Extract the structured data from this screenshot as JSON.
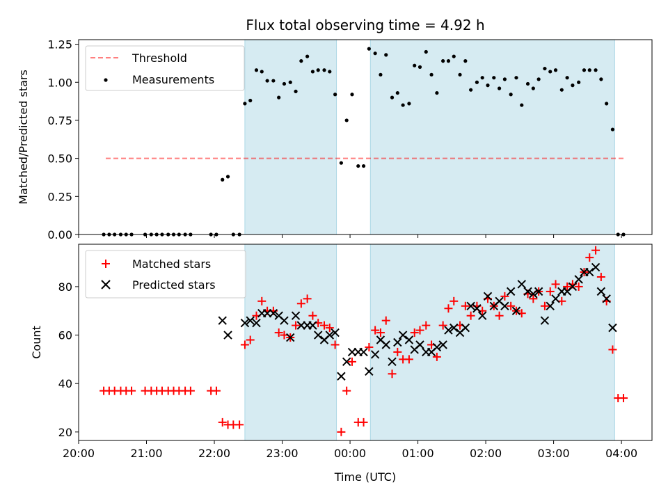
{
  "chart_data": {
    "type": "scatter",
    "title": "Flux total observing time = 4.92 h",
    "xlabel": "Time (UTC)",
    "x_ticks": [
      "20:00",
      "21:00",
      "22:00",
      "23:00",
      "00:00",
      "01:00",
      "02:00",
      "03:00",
      "04:00"
    ],
    "x_range_hours": [
      20.0,
      28.45
    ],
    "shaded_intervals_hours": [
      [
        22.45,
        23.8
      ],
      [
        24.3,
        27.9
      ]
    ],
    "shade_color": "#add8e6",
    "panels": [
      {
        "ylabel": "Matched/Predicted stars",
        "ylim": [
          0,
          1.28
        ],
        "y_ticks": [
          0.0,
          0.25,
          0.5,
          0.75,
          1.0,
          1.25
        ],
        "y_tick_labels": [
          "0.00",
          "0.25",
          "0.50",
          "0.75",
          "1.00",
          "1.25"
        ],
        "legend": [
          "Threshold",
          "Measurements"
        ],
        "legend_placement": "top-left",
        "threshold": {
          "name": "Threshold",
          "y": 0.5,
          "x_range_hours": [
            20.4,
            28.05
          ],
          "color": "#ff0000",
          "style": "dashed"
        },
        "measurements": {
          "name": "Measurements",
          "color": "#000000",
          "x": [
            20.37,
            20.45,
            20.53,
            20.62,
            20.7,
            20.78,
            20.98,
            21.07,
            21.15,
            21.23,
            21.32,
            21.4,
            21.48,
            21.57,
            21.65,
            21.95,
            22.03,
            22.12,
            22.2,
            22.28,
            22.37,
            22.45,
            22.53,
            22.62,
            22.7,
            22.78,
            22.87,
            22.95,
            23.03,
            23.12,
            23.2,
            23.28,
            23.37,
            23.45,
            23.53,
            23.62,
            23.7,
            23.78,
            23.87,
            23.95,
            24.03,
            24.12,
            24.2,
            24.28,
            24.37,
            24.45,
            24.53,
            24.62,
            24.7,
            24.78,
            24.87,
            24.95,
            25.03,
            25.12,
            25.2,
            25.28,
            25.37,
            25.45,
            25.53,
            25.62,
            25.7,
            25.78,
            25.87,
            25.95,
            26.03,
            26.12,
            26.2,
            26.28,
            26.37,
            26.45,
            26.53,
            26.62,
            26.7,
            26.78,
            26.87,
            26.95,
            27.03,
            27.12,
            27.2,
            27.28,
            27.37,
            27.45,
            27.53,
            27.62,
            27.7,
            27.78,
            27.87,
            27.95,
            28.03
          ],
          "y": [
            0.0,
            0.0,
            0.0,
            0.0,
            0.0,
            0.0,
            0.0,
            0.0,
            0.0,
            0.0,
            0.0,
            0.0,
            0.0,
            0.0,
            0.0,
            0.0,
            0.0,
            0.36,
            0.38,
            0.0,
            0.0,
            0.86,
            0.88,
            1.08,
            1.07,
            1.01,
            1.01,
            0.9,
            0.99,
            1.0,
            0.94,
            1.14,
            1.17,
            1.07,
            1.08,
            1.08,
            1.07,
            0.92,
            0.47,
            0.75,
            0.92,
            0.45,
            0.45,
            1.22,
            1.19,
            1.05,
            1.18,
            0.9,
            0.93,
            0.85,
            0.86,
            1.11,
            1.1,
            1.2,
            1.05,
            0.93,
            1.14,
            1.14,
            1.17,
            1.05,
            1.14,
            0.95,
            1.0,
            1.03,
            0.98,
            1.03,
            0.96,
            1.02,
            0.92,
            1.03,
            0.85,
            0.99,
            0.96,
            1.02,
            1.09,
            1.07,
            1.08,
            0.95,
            1.03,
            0.98,
            1.0,
            1.08,
            1.08,
            1.08,
            1.02,
            0.86,
            0.69,
            0.0,
            0.0
          ]
        }
      },
      {
        "ylabel": "Count",
        "ylim": [
          16.5,
          97.5
        ],
        "y_ticks": [
          20,
          40,
          60,
          80
        ],
        "y_tick_labels": [
          "20",
          "40",
          "60",
          "80"
        ],
        "legend": [
          "Matched stars",
          "Predicted stars"
        ],
        "legend_placement": "top-left",
        "series": [
          {
            "name": "Matched stars",
            "marker": "plus",
            "color": "#ff0000",
            "x": [
              20.37,
              20.45,
              20.53,
              20.62,
              20.7,
              20.78,
              20.98,
              21.07,
              21.15,
              21.23,
              21.32,
              21.4,
              21.48,
              21.57,
              21.65,
              21.95,
              22.03,
              22.12,
              22.2,
              22.28,
              22.37,
              22.45,
              22.53,
              22.62,
              22.7,
              22.78,
              22.87,
              22.95,
              23.03,
              23.12,
              23.2,
              23.28,
              23.37,
              23.45,
              23.53,
              23.62,
              23.7,
              23.78,
              23.87,
              23.95,
              24.03,
              24.12,
              24.2,
              24.28,
              24.37,
              24.45,
              24.53,
              24.62,
              24.7,
              24.78,
              24.87,
              24.95,
              25.03,
              25.12,
              25.2,
              25.28,
              25.37,
              25.45,
              25.53,
              25.62,
              25.7,
              25.78,
              25.87,
              25.95,
              26.03,
              26.12,
              26.2,
              26.28,
              26.37,
              26.45,
              26.53,
              26.62,
              26.7,
              26.78,
              26.87,
              26.95,
              27.03,
              27.12,
              27.2,
              27.28,
              27.37,
              27.45,
              27.53,
              27.62,
              27.7,
              27.78,
              27.87,
              27.95,
              28.03
            ],
            "y": [
              37,
              37,
              37,
              37,
              37,
              37,
              37,
              37,
              37,
              37,
              37,
              37,
              37,
              37,
              37,
              37,
              37,
              24,
              23,
              23,
              23,
              56,
              58,
              68,
              74,
              70,
              70,
              61,
              60,
              59,
              64,
              73,
              75,
              68,
              65,
              64,
              63,
              56,
              20,
              37,
              49,
              24,
              24,
              55,
              62,
              61,
              66,
              44,
              53,
              50,
              50,
              61,
              62,
              64,
              56,
              51,
              64,
              71,
              74,
              64,
              72,
              68,
              72,
              70,
              75,
              72,
              68,
              76,
              72,
              70,
              69,
              77,
              75,
              78,
              72,
              78,
              81,
              74,
              80,
              81,
              80,
              86,
              92,
              95,
              84,
              74,
              54,
              34,
              34
            ]
          },
          {
            "name": "Predicted stars",
            "marker": "x",
            "color": "#000000",
            "x": [
              22.12,
              22.2,
              22.45,
              22.53,
              22.62,
              22.7,
              22.78,
              22.87,
              22.95,
              23.03,
              23.12,
              23.2,
              23.28,
              23.37,
              23.45,
              23.53,
              23.62,
              23.7,
              23.78,
              23.87,
              23.95,
              24.03,
              24.12,
              24.2,
              24.28,
              24.37,
              24.45,
              24.53,
              24.62,
              24.7,
              24.78,
              24.87,
              24.95,
              25.03,
              25.12,
              25.2,
              25.28,
              25.37,
              25.45,
              25.53,
              25.62,
              25.7,
              25.78,
              25.87,
              25.95,
              26.03,
              26.12,
              26.2,
              26.28,
              26.37,
              26.45,
              26.53,
              26.62,
              26.7,
              26.78,
              26.87,
              26.95,
              27.03,
              27.12,
              27.2,
              27.28,
              27.37,
              27.45,
              27.53,
              27.62,
              27.7,
              27.78,
              27.87
            ],
            "y": [
              66,
              60,
              65,
              66,
              65,
              69,
              69,
              69,
              68,
              66,
              59,
              68,
              64,
              64,
              64,
              60,
              58,
              60,
              61,
              43,
              49,
              53,
              53,
              53,
              45,
              52,
              58,
              56,
              49,
              57,
              60,
              58,
              54,
              56,
              53,
              53,
              55,
              56,
              62,
              63,
              61,
              63,
              72,
              71,
              68,
              76,
              72,
              74,
              72,
              78,
              70,
              81,
              78,
              77,
              78,
              66,
              72,
              75,
              78,
              78,
              80,
              83,
              86,
              86,
              88,
              78,
              75,
              63
            ]
          }
        ]
      }
    ]
  }
}
